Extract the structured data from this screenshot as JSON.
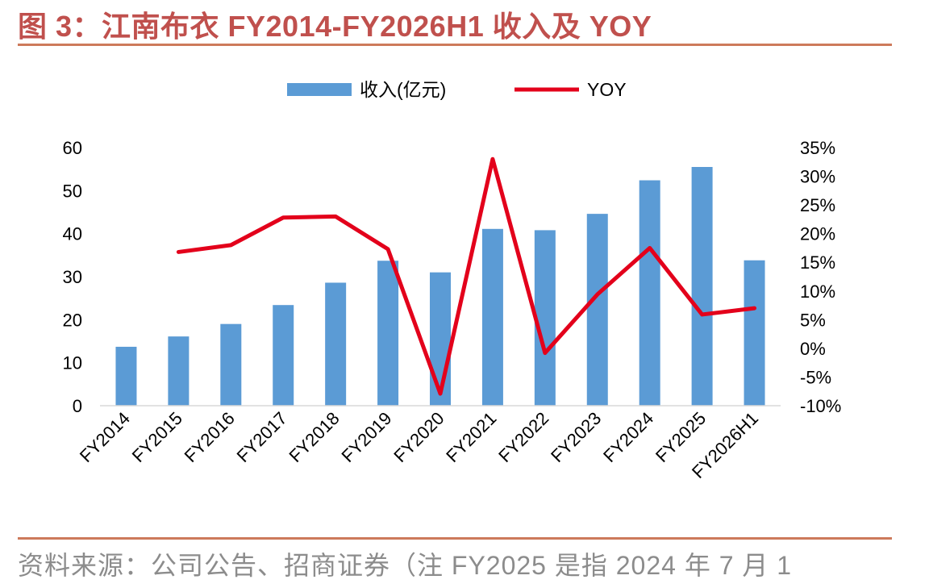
{
  "header": {
    "title": "图 3：江南布衣 FY2014-FY2026H1 收入及 YOY"
  },
  "footer": {
    "source": "资料来源：公司公告、招商证券（注 FY2025 是指 2024 年 7 月 1"
  },
  "colors": {
    "bar": "#5b9bd5",
    "line": "#e3001b",
    "accent": "#c0504d"
  },
  "chart_data": {
    "type": "bar",
    "categories": [
      "FY2014",
      "FY2015",
      "FY2016",
      "FY2017",
      "FY2018",
      "FY2019",
      "FY2020",
      "FY2021",
      "FY2022",
      "FY2023",
      "FY2024",
      "FY2025",
      "FY2026H1"
    ],
    "series": [
      {
        "name": "收入(亿元)",
        "type": "bar",
        "axis": "left",
        "values": [
          13.7,
          16.1,
          19.0,
          23.4,
          28.6,
          33.7,
          31.0,
          41.1,
          40.8,
          44.6,
          52.4,
          55.5,
          33.8
        ]
      },
      {
        "name": "YOY",
        "type": "line",
        "axis": "right",
        "values": [
          null,
          16.8,
          18.0,
          22.8,
          23.0,
          17.3,
          -7.9,
          33.0,
          -0.8,
          9.4,
          17.5,
          5.9,
          7.0
        ]
      }
    ],
    "ylim_left": [
      0,
      60
    ],
    "yticks_left": [
      "0",
      "10",
      "20",
      "30",
      "40",
      "50",
      "60"
    ],
    "ylim_right": [
      -10,
      35
    ],
    "yticks_right": [
      "-10%",
      "-5%",
      "0%",
      "5%",
      "10%",
      "15%",
      "20%",
      "25%",
      "30%",
      "35%"
    ],
    "legend_position": "top-center",
    "grid": false
  }
}
